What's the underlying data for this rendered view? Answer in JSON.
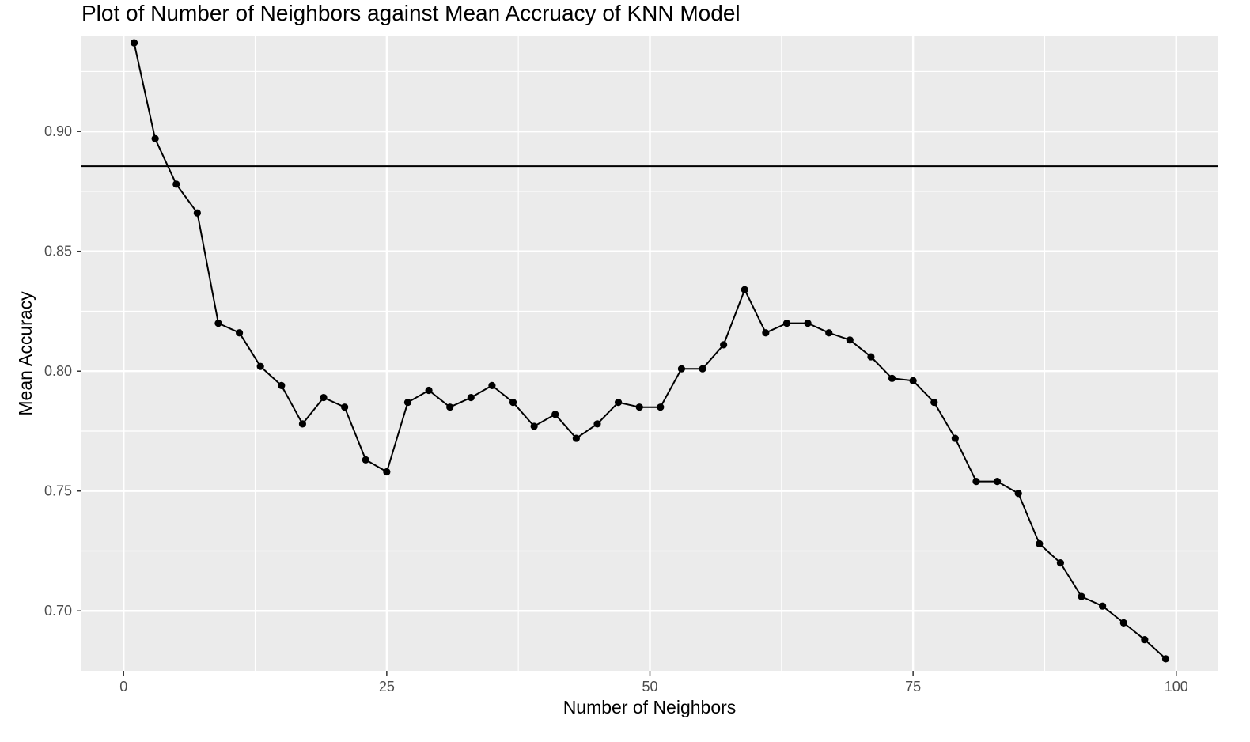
{
  "chart_data": {
    "type": "line",
    "title": "Plot of Number of Neighbors against Mean Accruacy of KNN Model",
    "xlabel": "Number of Neighbors",
    "ylabel": "Mean Accuracy",
    "xlim": [
      -4,
      104
    ],
    "ylim": [
      0.675,
      0.94
    ],
    "x_ticks": [
      0,
      25,
      50,
      75,
      100
    ],
    "x_tick_labels": [
      "0",
      "25",
      "50",
      "75",
      "100"
    ],
    "y_ticks": [
      0.7,
      0.75,
      0.8,
      0.85,
      0.9
    ],
    "y_tick_labels": [
      "0.70",
      "0.75",
      "0.80",
      "0.85",
      "0.90"
    ],
    "grid": true,
    "reference_line": {
      "orientation": "horizontal",
      "y": 0.8855
    },
    "series": [
      {
        "x": [
          1,
          3,
          5,
          7,
          9,
          11,
          13,
          15,
          17,
          19,
          21,
          23,
          25,
          27,
          29,
          31,
          33,
          35,
          37,
          39,
          41,
          43,
          45,
          47,
          49,
          51,
          53,
          55,
          57,
          59,
          61,
          63,
          65,
          67,
          69,
          71,
          73,
          75,
          77,
          79,
          81,
          83,
          85,
          87,
          89,
          91,
          93,
          95,
          97,
          99
        ],
        "values": [
          0.937,
          0.897,
          0.878,
          0.866,
          0.82,
          0.816,
          0.802,
          0.794,
          0.778,
          0.789,
          0.785,
          0.763,
          0.758,
          0.787,
          0.792,
          0.785,
          0.789,
          0.794,
          0.787,
          0.777,
          0.782,
          0.772,
          0.778,
          0.787,
          0.785,
          0.785,
          0.801,
          0.801,
          0.811,
          0.834,
          0.816,
          0.82,
          0.82,
          0.816,
          0.813,
          0.806,
          0.797,
          0.796,
          0.787,
          0.772,
          0.754,
          0.754,
          0.749,
          0.728,
          0.72,
          0.706,
          0.702,
          0.695,
          0.688,
          0.68
        ]
      }
    ],
    "colors": {
      "panel_background": "#ebebeb",
      "grid_major": "#ffffff",
      "line": "#000000",
      "point": "#000000",
      "tick_text": "#4d4d4d"
    }
  }
}
